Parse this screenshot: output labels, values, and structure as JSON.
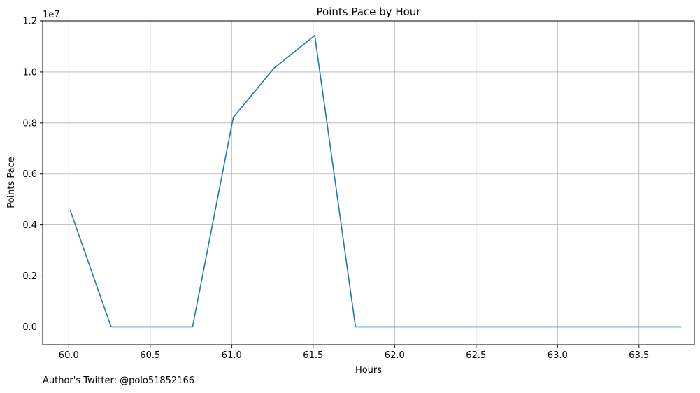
{
  "chart_data": {
    "type": "line",
    "title": "Points Pace by Hour",
    "xlabel": "Hours",
    "ylabel": "Points Pace",
    "y_offset_label": "1e7",
    "xlim": [
      59.84,
      63.84
    ],
    "ylim": [
      -0.07,
      1.2
    ],
    "y_scale_note": "values in units of 1e7",
    "x_ticks": [
      60.0,
      60.5,
      61.0,
      61.5,
      62.0,
      62.5,
      63.0,
      63.5
    ],
    "x_tick_labels": [
      "60.0",
      "60.5",
      "61.0",
      "61.5",
      "62.0",
      "62.5",
      "63.0",
      "63.5"
    ],
    "y_ticks": [
      0.0,
      0.2,
      0.4,
      0.6,
      0.8,
      1.0,
      1.2
    ],
    "y_tick_labels": [
      "0.0",
      "0.2",
      "0.4",
      "0.6",
      "0.8",
      "1.0",
      "1.2"
    ],
    "grid": true,
    "series": [
      {
        "color": "#1f77b4",
        "x": [
          60.01,
          60.26,
          60.51,
          60.76,
          61.01,
          61.26,
          61.51,
          61.76,
          62.01,
          62.26,
          62.51,
          62.76,
          63.01,
          63.26,
          63.51,
          63.76
        ],
        "y": [
          0.456,
          0.0,
          0.0,
          0.0,
          0.822,
          1.015,
          1.143,
          0.0,
          0.0,
          0.0,
          0.0,
          0.0,
          0.0,
          0.0,
          0.0,
          0.0
        ]
      }
    ]
  },
  "footnote": "Author's Twitter: @polo51852166"
}
